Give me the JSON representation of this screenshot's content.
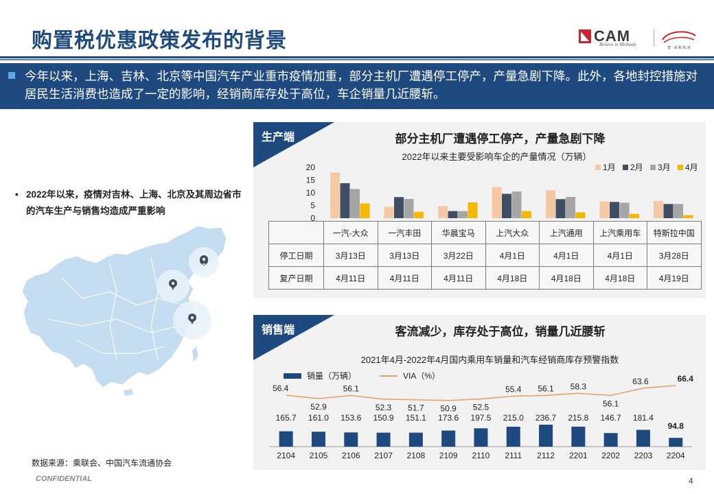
{
  "page": {
    "title": "购置税优惠政策发布的背景",
    "banner_text": "今年以来，上海、吉林、北京等中国汽车产业重市疫情加重，部分主机厂遭遇停工停产，产量急剧下降。此外，各地封控措施对居民生活消费也造成了一定的影响，经销商库存处于高位，车企销量几近腰斩。",
    "left_note": "2022年以来，疫情对吉林、上海、北京及其周边省市的汽车生产与销售均造成严重影响",
    "left_note_bullet": "•",
    "source": "数据来源：乘联会、中国汽车流通协会",
    "confidential": "CONFIDENTIAL",
    "page_number": "4"
  },
  "logo": {
    "cam": "CAM",
    "tagline": "Believe in Methods",
    "brand2_tagline": "智 · 采 购 先 进"
  },
  "colors": {
    "navy": "#1f4a80",
    "jan": "#f6c9a5",
    "feb": "#3f4e63",
    "mar": "#a6a6a6",
    "apr": "#f5b800",
    "via_line": "#e69d5e",
    "map_fill": "#c4ddf0"
  },
  "production": {
    "tag": "生产端",
    "title": "部分主机厂遭遇停工停产，产量急剧下降",
    "table_rows": [
      {
        "label": "停工日期",
        "values": [
          "3月13日",
          "3月13日",
          "3月22日",
          "4月1日",
          "4月1日",
          "4月1日",
          "3月28日"
        ]
      },
      {
        "label": "复产日期",
        "values": [
          "4月11日",
          "4月11日",
          "4月11日",
          "4月18日",
          "4月18日",
          "4月18日",
          "4月19日"
        ]
      }
    ]
  },
  "sales": {
    "tag": "销售端",
    "title": "客流减少，库存处于高位，销量几近腰斩",
    "legend_bar": "销量（万辆）",
    "legend_line": "VIA（%）"
  },
  "chart_data": [
    {
      "type": "bar",
      "title": "2022年以来主要受影响车企的产量情况（万辆）",
      "categories": [
        "一汽-大众",
        "一汽丰田",
        "华晨宝马",
        "上汽大众",
        "上汽通用",
        "上汽乘用车",
        "特斯拉中国"
      ],
      "series": [
        {
          "name": "1月",
          "values": [
            18,
            4.5,
            4.8,
            12.3,
            11,
            6.6,
            6.8
          ]
        },
        {
          "name": "2月",
          "values": [
            13.8,
            8.3,
            2.8,
            9.6,
            7.5,
            6.4,
            5.6
          ]
        },
        {
          "name": "3月",
          "values": [
            11.5,
            7.6,
            2.8,
            10.5,
            8.4,
            6.1,
            5.6
          ]
        },
        {
          "name": "4月",
          "values": [
            5.8,
            2.5,
            6.2,
            2.8,
            2.3,
            1.7,
            1.2
          ]
        }
      ],
      "yticks": [
        "0",
        "5",
        "10",
        "15",
        "20"
      ],
      "ylim": [
        0,
        20
      ],
      "legend": "top-right"
    },
    {
      "type": "bar+line",
      "title": "2021年4月-2022年4月国内乘用车销量和汽车经销商库存预警指数",
      "categories": [
        "2104",
        "2105",
        "2106",
        "2107",
        "2108",
        "2109",
        "2110",
        "2111",
        "2112",
        "2201",
        "2202",
        "2203",
        "2204"
      ],
      "series": [
        {
          "name": "销量（万辆）",
          "kind": "bar",
          "values": [
            165.7,
            161.0,
            153.6,
            150.9,
            151.1,
            173.6,
            197.5,
            215.0,
            236.7,
            215.8,
            146.7,
            181.4,
            94.8
          ],
          "labels": [
            "165.7",
            "161.0",
            "153.6",
            "150.9",
            "151.1",
            "173.6",
            "197.5",
            "215.0",
            "236.7",
            "215.8",
            "146.7",
            "181.4",
            "94.8"
          ]
        },
        {
          "name": "VIA（%）",
          "kind": "line",
          "values": [
            56.4,
            52.9,
            56.1,
            52.3,
            51.7,
            50.9,
            52.5,
            55.4,
            56.1,
            58.3,
            56.1,
            63.6,
            66.4
          ],
          "labels": [
            "56.4",
            "52.9",
            "56.1",
            "52.3",
            "51.7",
            "50.9",
            "52.5",
            "55.4",
            "56.1",
            "58.3",
            "56.1",
            "63.6",
            "66.4"
          ]
        }
      ],
      "legend": "top-left"
    }
  ]
}
